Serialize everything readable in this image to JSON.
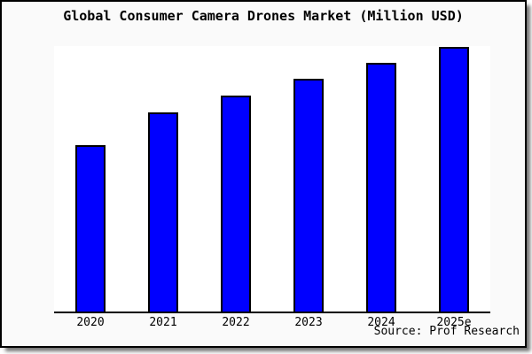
{
  "window": {
    "title": "Global Consumer Camera Drones Market (Million USD)"
  },
  "chart_data": {
    "type": "bar",
    "title": "Global Consumer Camera Drones Market (Million USD)",
    "categories": [
      "2020",
      "2021",
      "2022",
      "2023",
      "2024",
      "2025e"
    ],
    "values": [
      62.7,
      75.0,
      81.3,
      87.7,
      93.7,
      99.7
    ],
    "xlabel": "",
    "ylabel": "",
    "ylim": [
      0,
      100
    ],
    "grid": false,
    "legend_position": "none",
    "bar_color": "#0000ff",
    "bar_border_color": "#000000"
  },
  "source_note": "Source: Prof Research",
  "colors": {
    "frame_background": "#fafafa",
    "plot_background": "#ffffff",
    "bar_fill": "#0000ff",
    "border": "#000000"
  }
}
